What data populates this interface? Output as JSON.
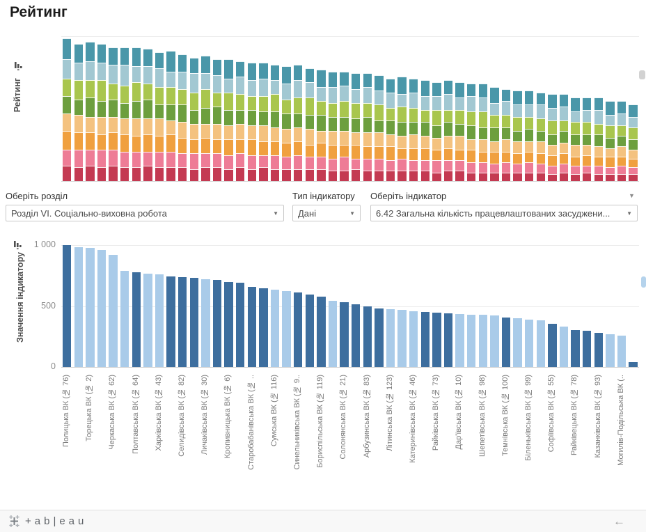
{
  "page": {
    "title": "Рейтинг"
  },
  "filters": {
    "section": {
      "label": "Оберіть розділ",
      "value": "Розділ VI. Соціально-виховна робота",
      "caret": "▼"
    },
    "indicator_type": {
      "label": "Тип індикатору",
      "value": "Дані",
      "caret": "▼"
    },
    "indicator": {
      "label": "Оберіть індикатор",
      "value": "6.42 Загальна кількість працевлаштованих засуджени...",
      "caret": "▼"
    },
    "menu_caret": "▼"
  },
  "footer": {
    "logo_text": "+ab|eau",
    "back_arrow": "←"
  },
  "chart_data": [
    {
      "type": "bar",
      "stacked": true,
      "ylabel": "Рейтинг",
      "note": "stacked rating chart, 50 facilities sorted descending, no numeric axis shown, units are estimated rating points, series listed bottom-to-top",
      "series": [
        {
          "name": "series-1",
          "color": "#c43a52",
          "values": [
            9,
            8,
            9,
            8,
            9,
            8,
            8,
            9,
            8,
            8,
            8,
            7,
            8,
            8,
            7,
            8,
            7,
            8,
            7,
            7,
            7,
            7,
            7,
            6,
            6,
            7,
            6,
            6,
            6,
            6,
            6,
            6,
            5,
            6,
            6,
            5,
            5,
            5,
            5,
            5,
            5,
            5,
            4,
            5,
            4,
            5,
            4,
            4,
            4,
            4
          ]
        },
        {
          "name": "series-2",
          "color": "#ee7c96",
          "values": [
            9,
            10,
            9,
            10,
            9,
            9,
            9,
            8,
            9,
            9,
            8,
            9,
            8,
            8,
            8,
            8,
            8,
            7,
            8,
            7,
            8,
            7,
            7,
            7,
            8,
            6,
            7,
            7,
            6,
            7,
            6,
            6,
            7,
            6,
            6,
            6,
            6,
            5,
            6,
            5,
            6,
            5,
            5,
            5,
            5,
            4,
            5,
            4,
            5,
            4
          ]
        },
        {
          "name": "series-3",
          "color": "#f0a03f",
          "values": [
            11,
            10,
            10,
            9,
            10,
            10,
            9,
            10,
            9,
            10,
            9,
            8,
            9,
            8,
            9,
            8,
            9,
            8,
            8,
            8,
            8,
            7,
            8,
            8,
            7,
            8,
            7,
            7,
            8,
            6,
            7,
            7,
            6,
            7,
            6,
            7,
            6,
            7,
            6,
            6,
            6,
            6,
            6,
            6,
            5,
            6,
            5,
            6,
            5,
            5
          ]
        },
        {
          "name": "series-4",
          "color": "#f4c27f",
          "values": [
            10,
            10,
            9,
            10,
            9,
            9,
            10,
            9,
            10,
            8,
            9,
            9,
            8,
            9,
            8,
            9,
            8,
            9,
            8,
            8,
            8,
            9,
            7,
            8,
            8,
            7,
            8,
            8,
            7,
            7,
            8,
            7,
            7,
            7,
            8,
            6,
            7,
            6,
            7,
            7,
            6,
            7,
            6,
            6,
            7,
            6,
            6,
            5,
            6,
            5
          ]
        },
        {
          "name": "series-5",
          "color": "#6d9f3e",
          "values": [
            10,
            9,
            11,
            9,
            10,
            9,
            10,
            11,
            8,
            9,
            10,
            8,
            9,
            10,
            9,
            8,
            9,
            8,
            9,
            9,
            8,
            8,
            9,
            8,
            8,
            8,
            9,
            7,
            8,
            8,
            7,
            8,
            7,
            8,
            7,
            8,
            7,
            8,
            7,
            6,
            7,
            6,
            6,
            7,
            6,
            6,
            7,
            6,
            6,
            6
          ]
        },
        {
          "name": "series-6",
          "color": "#a9c64e",
          "values": [
            10,
            11,
            10,
            12,
            9,
            10,
            11,
            9,
            10,
            10,
            9,
            10,
            11,
            8,
            10,
            9,
            8,
            9,
            10,
            8,
            9,
            10,
            8,
            8,
            9,
            9,
            8,
            9,
            7,
            9,
            8,
            7,
            9,
            7,
            8,
            8,
            9,
            7,
            7,
            8,
            7,
            7,
            8,
            6,
            7,
            7,
            6,
            7,
            6,
            7
          ]
        },
        {
          "name": "series-7",
          "color": "#a2c8d2",
          "values": [
            11,
            10,
            11,
            10,
            11,
            12,
            9,
            10,
            11,
            9,
            10,
            11,
            9,
            10,
            8,
            10,
            9,
            10,
            8,
            9,
            10,
            9,
            8,
            9,
            9,
            8,
            9,
            8,
            9,
            7,
            9,
            8,
            8,
            9,
            7,
            9,
            8,
            7,
            8,
            7,
            7,
            8,
            7,
            8,
            6,
            7,
            8,
            6,
            7,
            6
          ]
        },
        {
          "name": "series-8",
          "color": "#4a97a9",
          "values": [
            12,
            11,
            11,
            11,
            10,
            10,
            11,
            10,
            9,
            12,
            10,
            9,
            10,
            9,
            11,
            9,
            10,
            9,
            9,
            10,
            9,
            8,
            10,
            9,
            8,
            9,
            8,
            9,
            8,
            10,
            8,
            9,
            8,
            8,
            9,
            7,
            8,
            9,
            7,
            8,
            8,
            7,
            8,
            7,
            8,
            7,
            7,
            8,
            7,
            7
          ]
        }
      ]
    },
    {
      "type": "bar",
      "ylabel": "Значення індикатору",
      "ylim": [
        0,
        1000
      ],
      "yticks": [
        {
          "label": "1 000",
          "value": 1000
        },
        {
          "label": "500",
          "value": 500
        },
        {
          "label": "0",
          "value": 0
        }
      ],
      "palette": {
        "dark": "#3d6e9e",
        "light": "#a9cbe9"
      },
      "values": [
        1000,
        985,
        975,
        958,
        920,
        790,
        775,
        768,
        760,
        745,
        738,
        734,
        720,
        712,
        700,
        692,
        660,
        645,
        632,
        622,
        610,
        592,
        580,
        545,
        533,
        515,
        498,
        478,
        472,
        468,
        460,
        452,
        447,
        440,
        432,
        430,
        428,
        425,
        408,
        400,
        390,
        382,
        352,
        330,
        302,
        295,
        282,
        270,
        258,
        40
      ],
      "shades": [
        "dark",
        "light",
        "light",
        "light",
        "light",
        "light",
        "dark",
        "light",
        "light",
        "dark",
        "dark",
        "dark",
        "light",
        "dark",
        "dark",
        "dark",
        "dark",
        "dark",
        "light",
        "light",
        "dark",
        "dark",
        "dark",
        "light",
        "dark",
        "dark",
        "dark",
        "dark",
        "light",
        "light",
        "light",
        "dark",
        "dark",
        "dark",
        "light",
        "light",
        "light",
        "light",
        "dark",
        "light",
        "light",
        "light",
        "dark",
        "light",
        "dark",
        "dark",
        "dark",
        "light",
        "light",
        "dark"
      ],
      "categories": [
        "Полицька ВК (№ 76)",
        "",
        "Торецька ВК (№ 2)",
        "",
        "Черкаська ВК (№ 62)",
        "",
        "Полтавська ВК (№ 64)",
        "",
        "Харківська ВК (№ 43)",
        "",
        "Селидівська ВК (№ 82)",
        "",
        "Личаківська ВК (№ 30)",
        "",
        "Кропивницька ВК (№ 6)",
        "",
        "Старобабанівська ВК (№ ..",
        "",
        "Сумська ВК (№ 116)",
        "",
        "Синельниківська ВК (№ 9..",
        "",
        "Бориспільська ВК (№ 119)",
        "",
        "Солонянська ВК (№ 21)",
        "",
        "Арбузинська ВК (№ 83)",
        "",
        "Літинська ВК (№ 123)",
        "",
        "Катеринівська ВК (№ 46)",
        "",
        "Райківська ВК (№ 73)",
        "",
        "Дар'ївська ВК (№ 10)",
        "",
        "Шепетівська ВК (№ 98)",
        "",
        "Темнівська ВК (№ 100)",
        "",
        "Біленьківська ВК (№ 99)",
        "",
        "Софіївська ВК (№ 55)",
        "",
        "Райківецька ВК (№ 78)",
        "",
        "Казанківська ВК (№ 93)",
        "",
        "Могилів-Подільська ВК (..",
        ""
      ]
    }
  ]
}
